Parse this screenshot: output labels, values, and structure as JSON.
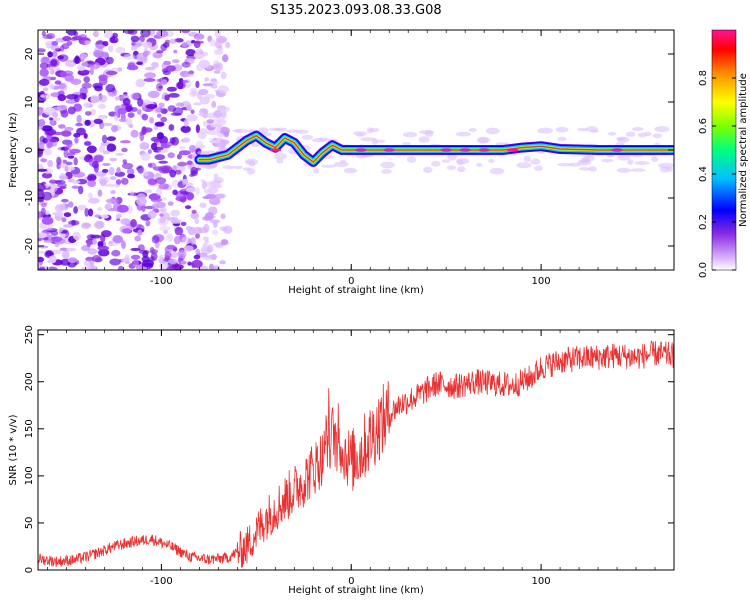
{
  "figure": {
    "title": "S135.2023.093.08.33.G08"
  },
  "chart_data": [
    {
      "type": "heatmap",
      "name": "spectrogram",
      "xlabel": "Height of straight line (km)",
      "ylabel": "Frequency (Hz)",
      "xlim": [
        -165,
        170
      ],
      "ylim": [
        -25,
        25
      ],
      "xticks": [
        -100,
        0,
        100
      ],
      "yticks": [
        -20,
        -10,
        0,
        10,
        20
      ],
      "ridge": {
        "x": [
          -80,
          -75,
          -70,
          -65,
          -60,
          -55,
          -50,
          -45,
          -40,
          -35,
          -30,
          -25,
          -20,
          -15,
          -10,
          -5,
          0,
          10,
          20,
          40,
          60,
          80,
          90,
          100,
          110,
          130,
          150,
          170
        ],
        "freq": [
          -2,
          -2,
          -1.5,
          -1,
          0.5,
          2,
          3,
          1.5,
          0.5,
          2.5,
          1.5,
          -1,
          -2.5,
          -0.5,
          1,
          0,
          0,
          0,
          0,
          0,
          0,
          0,
          0.5,
          0.8,
          0.2,
          0,
          0,
          0
        ]
      },
      "colorbar": {
        "label": "Normalized spectral amplitude",
        "range": [
          0,
          1
        ],
        "ticks": [
          0.0,
          0.2,
          0.4,
          0.6,
          0.8
        ],
        "tick_labels": [
          "0.0",
          "0.2",
          "0.4",
          "0.6",
          "0.8"
        ],
        "colors": [
          "#ffffff",
          "#d9b3ff",
          "#8a2be2",
          "#0000ff",
          "#00bfff",
          "#00ff7f",
          "#7fff00",
          "#ffff00",
          "#ff8c00",
          "#ff0000",
          "#ff1493"
        ]
      }
    },
    {
      "type": "line",
      "name": "snr",
      "xlabel": "Height of straight line (km)",
      "ylabel": "SNR (10 * v/v)",
      "xlim": [
        -165,
        170
      ],
      "ylim": [
        0,
        255
      ],
      "xticks": [
        -100,
        0,
        100
      ],
      "yticks": [
        0,
        50,
        100,
        150,
        200,
        250
      ],
      "color": "#e83232",
      "x": [
        -165,
        -155,
        -145,
        -135,
        -125,
        -115,
        -105,
        -95,
        -85,
        -75,
        -65,
        -55,
        -45,
        -35,
        -25,
        -15,
        -10,
        -5,
        0,
        5,
        15,
        25,
        35,
        45,
        55,
        65,
        75,
        85,
        90,
        95,
        100,
        110,
        120,
        130,
        140,
        150,
        160,
        170
      ],
      "values": [
        12,
        9,
        11,
        17,
        25,
        30,
        33,
        25,
        14,
        11,
        13,
        25,
        55,
        75,
        95,
        120,
        145,
        130,
        115,
        125,
        155,
        175,
        185,
        198,
        195,
        200,
        198,
        196,
        200,
        205,
        215,
        222,
        225,
        226,
        228,
        226,
        230,
        228
      ]
    }
  ]
}
